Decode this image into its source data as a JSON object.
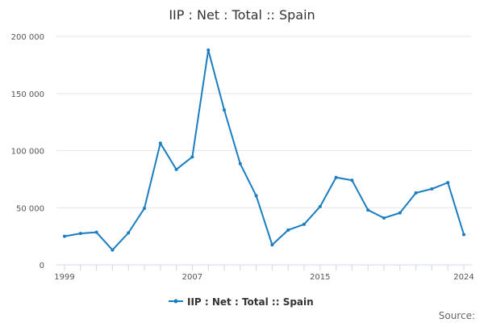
{
  "chart_data": {
    "type": "line",
    "title": "IIP : Net : Total :: Spain",
    "xlabel": "",
    "ylabel": "",
    "x": [
      1999,
      2000,
      2001,
      2002,
      2003,
      2004,
      2005,
      2006,
      2007,
      2008,
      2009,
      2010,
      2011,
      2012,
      2013,
      2014,
      2015,
      2016,
      2017,
      2018,
      2019,
      2020,
      2021,
      2022,
      2023,
      2024
    ],
    "series": [
      {
        "name": "IIP : Net : Total :: Spain",
        "values": [
          25000,
          27500,
          28500,
          13000,
          28000,
          49500,
          106500,
          83500,
          94500,
          188000,
          135500,
          88500,
          60500,
          17500,
          30500,
          35500,
          51000,
          76500,
          74000,
          48000,
          41000,
          45500,
          63000,
          66500,
          72000,
          26500
        ]
      }
    ],
    "xlim": [
      1999,
      2024
    ],
    "ylim": [
      0,
      200000
    ],
    "y_ticks": [
      0,
      50000,
      100000,
      150000,
      200000
    ],
    "y_tick_labels": [
      "0",
      "50 000",
      "100 000",
      "150 000",
      "200 000"
    ],
    "x_tick_labels": [
      "1999",
      "2007",
      "2015",
      "2024"
    ],
    "x_tick_values": [
      1999,
      2007,
      2015,
      2024
    ],
    "grid": "horizontal",
    "legend_position": "bottom-center",
    "colors": {
      "line": "#1a7dbf",
      "grid": "#e6e6e6",
      "axis": "#ccd6eb"
    }
  },
  "credits": "Source:"
}
